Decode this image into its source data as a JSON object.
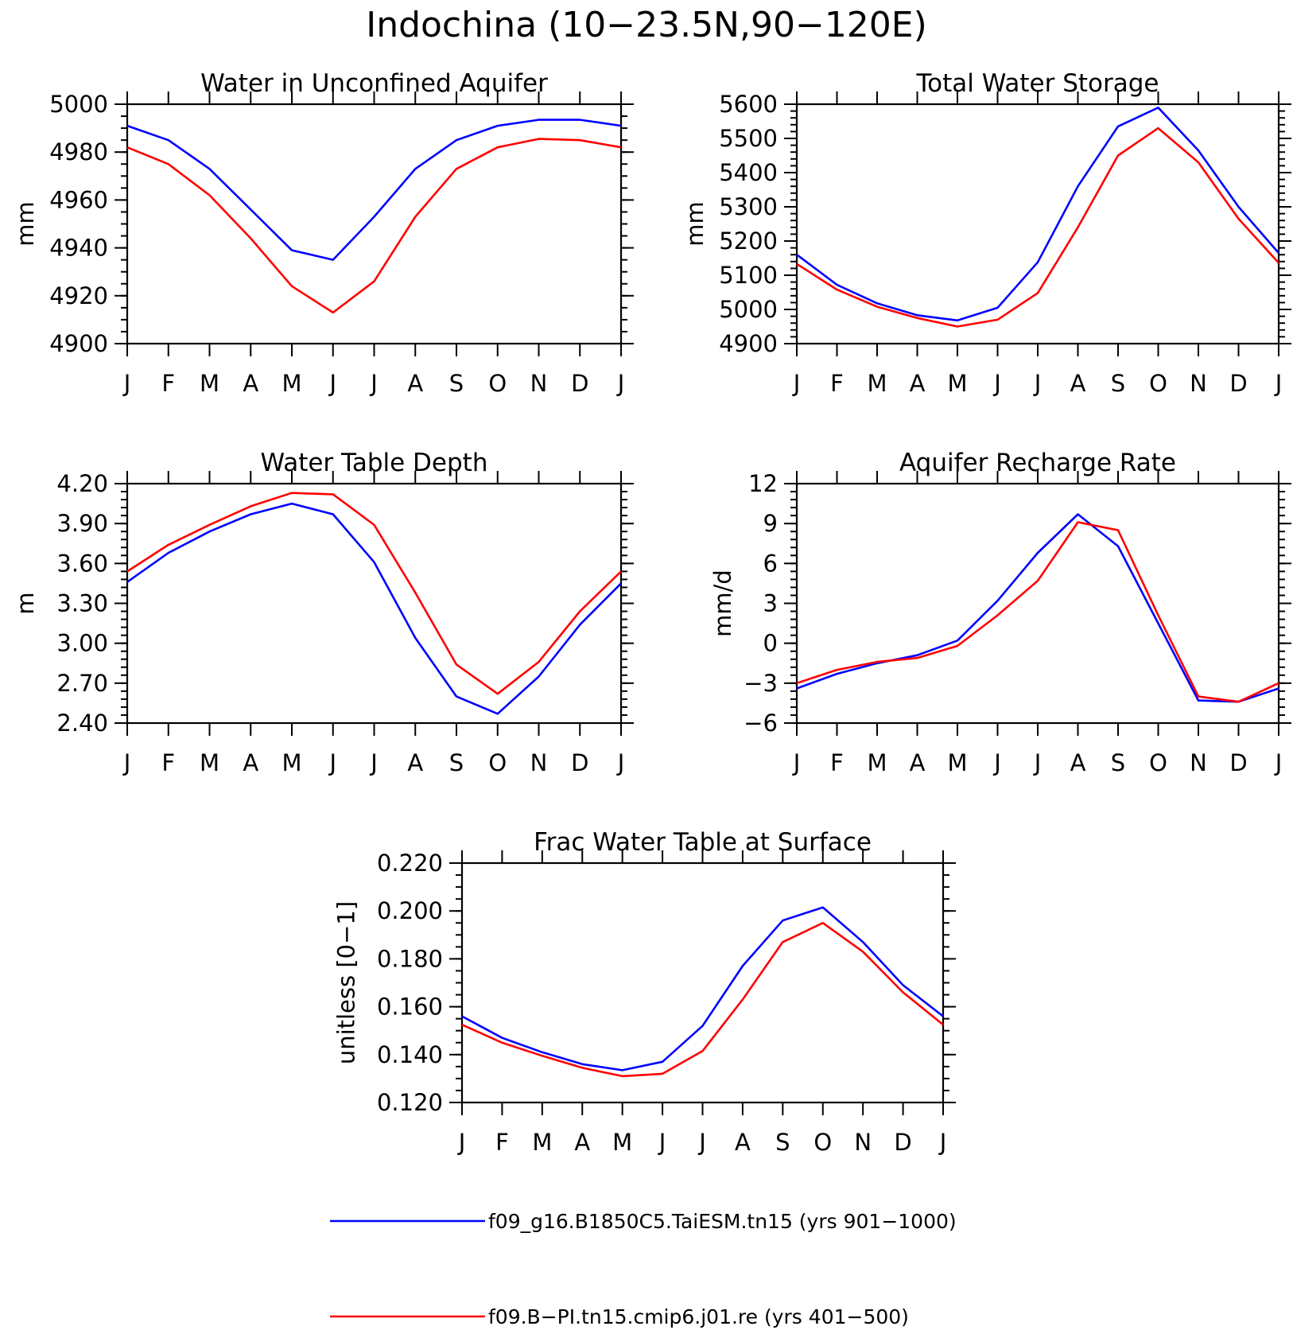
{
  "figure": {
    "title": "Indochina (10−23.5N,90−120E)"
  },
  "colors": {
    "blue": "#0000ff",
    "red": "#ff0000"
  },
  "legend": [
    {
      "label": "f09_g16.B1850C5.TaiESM.tn15 (yrs 901−1000)",
      "color": "#0000ff"
    },
    {
      "label": "f09.B−PI.tn15.cmip6.j01.re (yrs 401−500)",
      "color": "#ff0000"
    }
  ],
  "chart_data": [
    {
      "type": "line",
      "title": "Water in Unconfined Aquifer",
      "ylabel": "mm",
      "categories": [
        "J",
        "F",
        "M",
        "A",
        "M",
        "J",
        "J",
        "A",
        "S",
        "O",
        "N",
        "D",
        "J"
      ],
      "ylim": [
        4900,
        5000
      ],
      "yticks": [
        "4900",
        "4920",
        "4940",
        "4960",
        "4980",
        "5000"
      ],
      "yminor_step": 5,
      "series": [
        {
          "color": "#0000ff",
          "values": [
            4991,
            4985,
            4973,
            4956,
            4939,
            4935,
            4953,
            4973,
            4985,
            4991,
            4993.5,
            4993.5,
            4991
          ]
        },
        {
          "color": "#ff0000",
          "values": [
            4982,
            4975,
            4962,
            4944,
            4924,
            4913,
            4926,
            4953,
            4973,
            4982,
            4985.5,
            4985,
            4982
          ]
        }
      ]
    },
    {
      "type": "line",
      "title": "Total Water Storage",
      "ylabel": "mm",
      "categories": [
        "J",
        "F",
        "M",
        "A",
        "M",
        "J",
        "J",
        "A",
        "S",
        "O",
        "N",
        "D",
        "J"
      ],
      "ylim": [
        4900,
        5600
      ],
      "yticks": [
        "4900",
        "5000",
        "5100",
        "5200",
        "5300",
        "5400",
        "5500",
        "5600"
      ],
      "yminor_step": 20,
      "series": [
        {
          "color": "#0000ff",
          "values": [
            5160,
            5072,
            5018,
            4983,
            4968,
            5005,
            5138,
            5360,
            5535,
            5590,
            5465,
            5300,
            5165
          ]
        },
        {
          "color": "#ff0000",
          "values": [
            5133,
            5058,
            5008,
            4975,
            4950,
            4970,
            5048,
            5240,
            5450,
            5530,
            5430,
            5265,
            5136
          ]
        }
      ]
    },
    {
      "type": "line",
      "title": "Water Table Depth",
      "ylabel": "m",
      "categories": [
        "J",
        "F",
        "M",
        "A",
        "M",
        "J",
        "J",
        "A",
        "S",
        "O",
        "N",
        "D",
        "J"
      ],
      "ylim": [
        2.4,
        4.2
      ],
      "yticks": [
        "2.40",
        "2.70",
        "3.00",
        "3.30",
        "3.60",
        "3.90",
        "4.20"
      ],
      "yminor_step": 0.06,
      "series": [
        {
          "color": "#0000ff",
          "values": [
            3.46,
            3.68,
            3.84,
            3.97,
            4.05,
            3.97,
            3.61,
            3.04,
            2.6,
            2.47,
            2.75,
            3.14,
            3.45
          ]
        },
        {
          "color": "#ff0000",
          "values": [
            3.54,
            3.74,
            3.89,
            4.03,
            4.13,
            4.12,
            3.89,
            3.38,
            2.84,
            2.62,
            2.86,
            3.24,
            3.54
          ]
        }
      ]
    },
    {
      "type": "line",
      "title": "Aquifer Recharge Rate",
      "ylabel": "mm/d",
      "categories": [
        "J",
        "F",
        "M",
        "A",
        "M",
        "J",
        "J",
        "A",
        "S",
        "O",
        "N",
        "D",
        "J"
      ],
      "ylim": [
        -6,
        12
      ],
      "yticks": [
        "−6",
        "−3",
        "0",
        "3",
        "6",
        "9",
        "12"
      ],
      "yminor_step": 0.6,
      "series": [
        {
          "color": "#0000ff",
          "values": [
            -3.4,
            -2.3,
            -1.5,
            -0.9,
            0.2,
            3.2,
            6.8,
            9.7,
            7.3,
            1.5,
            -4.3,
            -4.4,
            -3.4
          ]
        },
        {
          "color": "#ff0000",
          "values": [
            -3.0,
            -2.0,
            -1.4,
            -1.1,
            -0.2,
            2.1,
            4.7,
            9.1,
            8.5,
            2.1,
            -4.0,
            -4.4,
            -3.0
          ]
        }
      ]
    },
    {
      "type": "line",
      "title": "Frac Water Table at Surface",
      "ylabel": "unitless [0−1]",
      "categories": [
        "J",
        "F",
        "M",
        "A",
        "M",
        "J",
        "J",
        "A",
        "S",
        "O",
        "N",
        "D",
        "J"
      ],
      "ylim": [
        0.12,
        0.22
      ],
      "yticks": [
        "0.120",
        "0.140",
        "0.160",
        "0.180",
        "0.200",
        "0.220"
      ],
      "yminor_step": 0.005,
      "series": [
        {
          "color": "#0000ff",
          "values": [
            0.156,
            0.147,
            0.141,
            0.136,
            0.1335,
            0.137,
            0.152,
            0.177,
            0.196,
            0.2015,
            0.187,
            0.169,
            0.156
          ]
        },
        {
          "color": "#ff0000",
          "values": [
            0.1525,
            0.145,
            0.1395,
            0.1345,
            0.131,
            0.132,
            0.1415,
            0.163,
            0.187,
            0.195,
            0.183,
            0.166,
            0.1525
          ]
        }
      ]
    }
  ]
}
